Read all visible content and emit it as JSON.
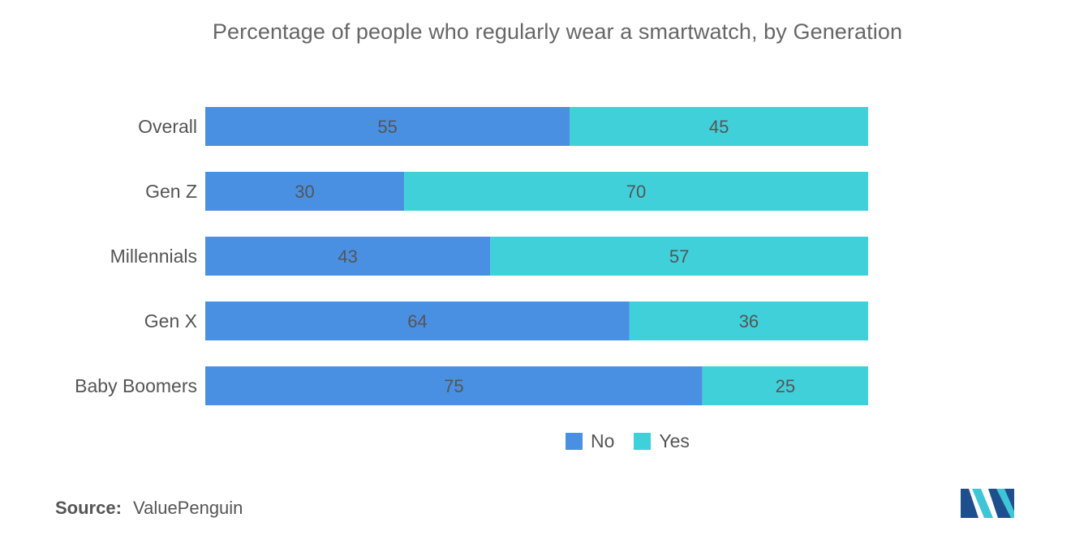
{
  "chart_data": {
    "type": "bar",
    "orientation": "horizontal",
    "stacked": true,
    "title": "Percentage of people who regularly wear a smartwatch, by Generation",
    "xlabel": "",
    "ylabel": "",
    "xlim": [
      0,
      100
    ],
    "grid": false,
    "legend_position": "bottom",
    "categories": [
      "Overall",
      "Gen Z",
      "Millennials",
      "Gen X",
      "Baby Boomers"
    ],
    "series": [
      {
        "name": "No",
        "color": "#4a90e2",
        "values": [
          55,
          30,
          43,
          64,
          75
        ]
      },
      {
        "name": "Yes",
        "color": "#40d0da",
        "values": [
          45,
          70,
          57,
          36,
          25
        ]
      }
    ]
  },
  "footer": {
    "source_label": "Source:",
    "source_value": "ValuePenguin"
  },
  "logo": {
    "icon": "mordor-logo-icon",
    "colors": [
      "#1e4e8c",
      "#3ec6d6"
    ]
  }
}
